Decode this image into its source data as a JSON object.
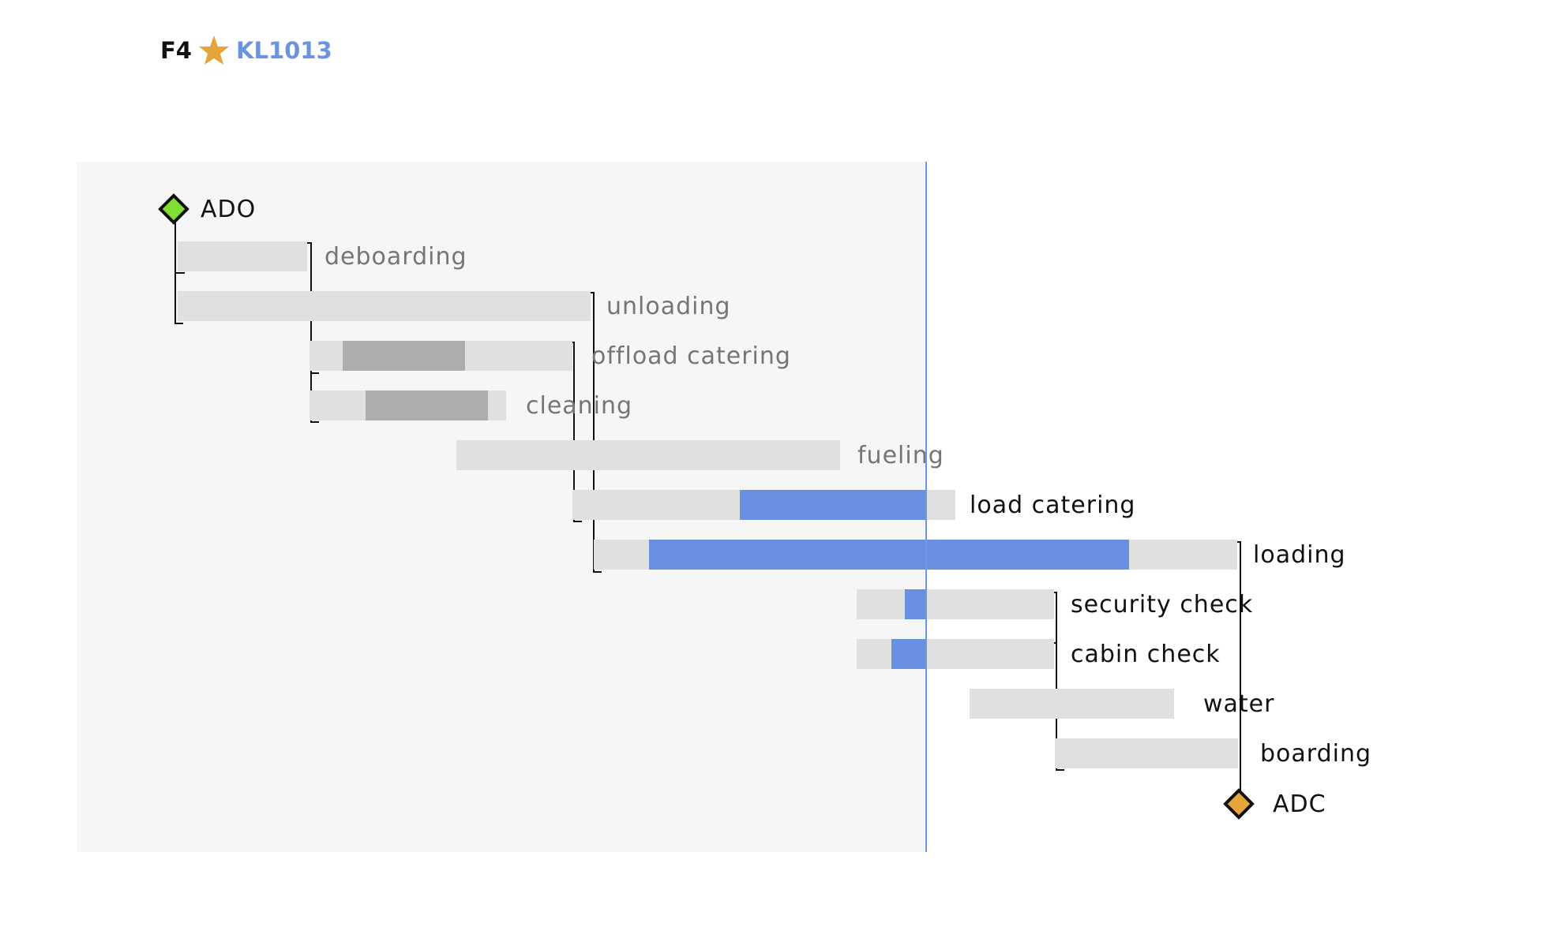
{
  "header": {
    "gate": "F4",
    "flight": "KL1013",
    "star_icon": "star-icon",
    "star_color": "#e4a63a"
  },
  "colors": {
    "panel": "#f6f6f6",
    "track": "#e0e0e0",
    "progress_done": "#adadad",
    "progress_active": "#6890de",
    "now_line": "#6f97e2",
    "label_past": "#757575",
    "label_future": "#111111",
    "ado_marker": "#7fe033",
    "adc_marker": "#e4a63a"
  },
  "milestones": {
    "start": {
      "label": "ADO",
      "icon": "diamond-icon"
    },
    "end": {
      "label": "ADC",
      "icon": "diamond-icon"
    }
  },
  "tasks": [
    {
      "name": "deboarding",
      "state": "past"
    },
    {
      "name": "unloading",
      "state": "past"
    },
    {
      "name": "offload catering",
      "state": "past",
      "progress": "done"
    },
    {
      "name": "cleaning",
      "state": "past",
      "progress": "done"
    },
    {
      "name": "fueling",
      "state": "past"
    },
    {
      "name": "load catering",
      "state": "active",
      "progress": "active"
    },
    {
      "name": "loading",
      "state": "active",
      "progress": "active"
    },
    {
      "name": "security check",
      "state": "active",
      "progress": "active"
    },
    {
      "name": "cabin check",
      "state": "active",
      "progress": "active"
    },
    {
      "name": "water",
      "state": "future"
    },
    {
      "name": "boarding",
      "state": "future"
    }
  ]
}
